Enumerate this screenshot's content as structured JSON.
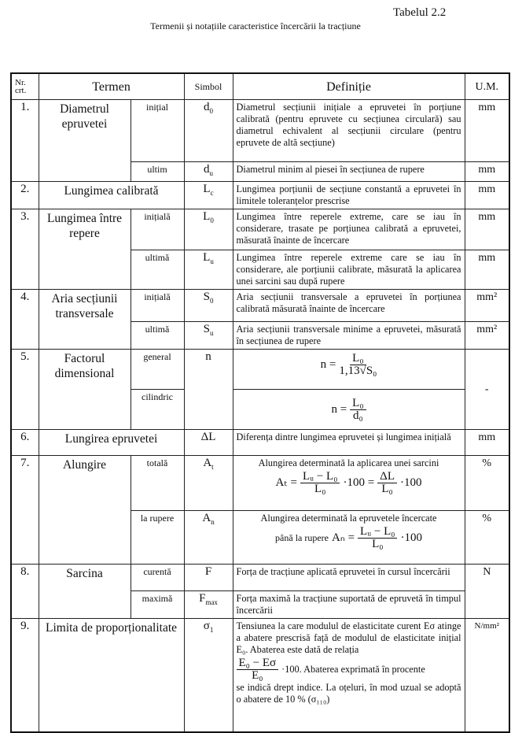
{
  "table_number": "Tabelul 2.2",
  "title": "Termenii și notațiile caracteristice încercării la tracțiune",
  "headers": {
    "nr": "Nr.",
    "nr2": "crt.",
    "termen": "Termen",
    "simbol": "Simbol",
    "definitie": "Definiție",
    "um": "U.M."
  },
  "r1": {
    "nr": "1.",
    "termen": "Diametrul epruvetei",
    "a": {
      "sub": "inițial",
      "sym": "d",
      "sym_sub": "0",
      "def": "Diametrul secțiunii inițiale a epruvetei în porțiune calibrată (pentru epruvete cu secțiunea circulară) sau diametrul echivalent al secțiunii circulare (pentru epruvete de altă secțiune)",
      "um": "mm"
    },
    "b": {
      "sub": "ultim",
      "sym": "d",
      "sym_sub": "u",
      "def": "Diametrul minim al piesei în secțiunea de rupere",
      "um": "mm"
    }
  },
  "r2": {
    "nr": "2.",
    "termen": "Lungimea calibrată",
    "sym": "L",
    "sym_sub": "c",
    "def": "Lungimea porțiunii de secțiune constantă a epruvetei în limitele toleranțelor prescrise",
    "um": "mm"
  },
  "r3": {
    "nr": "3.",
    "termen": "Lungimea între repere",
    "a": {
      "sub": "inițială",
      "sym": "L",
      "sym_sub": "0",
      "def": "Lungimea între reperele extreme, care se iau în considerare, trasate pe porțiunea calibrată a epruvetei, măsurată înainte de încercare",
      "um": "mm"
    },
    "b": {
      "sub": "ultimă",
      "sym": "L",
      "sym_sub": "u",
      "def": "Lungimea între reperele extreme care se iau în considerare, ale porțiunii calibrate, măsurată la aplicarea unei sarcini sau după rupere",
      "um": "mm"
    }
  },
  "r4": {
    "nr": "4.",
    "termen": "Aria secțiunii transversale",
    "a": {
      "sub": "inițială",
      "sym": "S",
      "sym_sub": "0",
      "def": "Aria secțiunii transversale a epruvetei în porțiunea calibrată măsurată înainte de încercare",
      "um": "mm²"
    },
    "b": {
      "sub": "ultimă",
      "sym": "S",
      "sym_sub": "u",
      "def": "Aria secțiunii transversale minime a epruvetei, măsurată în secțiunea de rupere",
      "um": "mm²"
    }
  },
  "r5": {
    "nr": "5.",
    "termen": "Factorul dimensional",
    "sym": "n",
    "um": "-",
    "a": {
      "sub": "general",
      "lhs": "n =",
      "num": "L₀",
      "den": "1,13√S₀"
    },
    "b": {
      "sub": "cilindric",
      "lhs": "n =",
      "num": "L₀",
      "den": "d₀"
    }
  },
  "r6": {
    "nr": "6.",
    "termen": "Lungirea epruvetei",
    "sym": "ΔL",
    "def": "Diferența dintre lungimea epruvetei și lungimea inițială",
    "um": "mm"
  },
  "r7": {
    "nr": "7.",
    "termen": "Alungire",
    "a": {
      "sub": "totală",
      "sym": "A",
      "sym_sub": "t",
      "def": "Alungirea determinată la aplicarea unei sarcini",
      "lhs": "Aₜ =",
      "num1": "Lᵤ − L₀",
      "den1": "L₀",
      "mid": "·100 =",
      "num2": "ΔL",
      "den2": "L₀",
      "tail": "·100",
      "um": "%"
    },
    "b": {
      "sub": "la rupere",
      "sym": "A",
      "sym_sub": "n",
      "def": "Alungirea determinată la epruvetele încercate",
      "pre": "până la rupere",
      "lhs": "Aₙ =",
      "num": "Lᵤ − L₀",
      "den": "L₀",
      "tail": "·100",
      "um": "%"
    }
  },
  "r8": {
    "nr": "8.",
    "termen": "Sarcina",
    "um": "N",
    "a": {
      "sub": "curentă",
      "sym": "F",
      "def": "Forța de tracțiune aplicată epruvetei în cursul încercării"
    },
    "b": {
      "sub": "maximă",
      "sym": "F",
      "sym_sub": "max",
      "def": "Forța maximă la tracțiune suportată de epruvetă în timpul încercării"
    }
  },
  "r9": {
    "nr": "9.",
    "termen": "Limita de proporționalitate",
    "sym": "σ",
    "sym_sub": "1",
    "um": "N/mm²",
    "def1": "Tensiunea la care modulul de elasticitate curent Eσ atinge a abatere prescrisă față de modulul de elasticitate inițial E₀. Abaterea este dată de relația",
    "num": "E₀ − Eσ",
    "den": "E₀",
    "tail": "·100. Abaterea exprimată în procente",
    "def2": "se indică drept indice. La oțeluri, în mod uzual se adoptă o abatere de 10 % (σ₁₁₀)"
  }
}
